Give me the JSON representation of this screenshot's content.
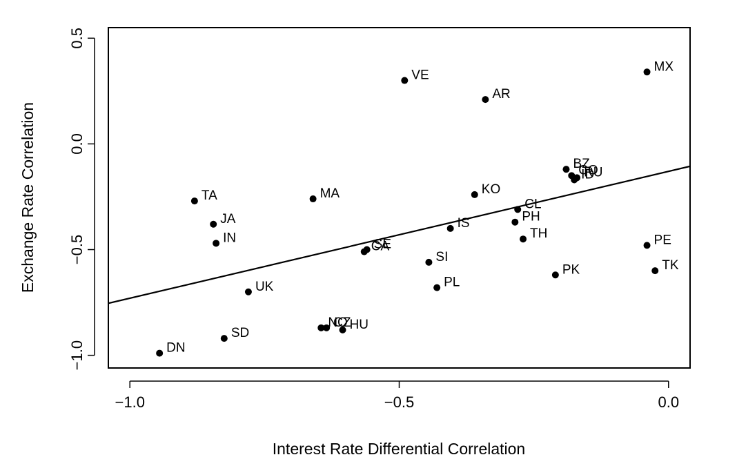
{
  "chart_data": {
    "type": "scatter",
    "xlabel": "Interest Rate Differential Correlation",
    "ylabel": "Exchange Rate Correlation",
    "xlim": [
      -1.04,
      0.04
    ],
    "ylim": [
      -1.06,
      0.55
    ],
    "x_ticks": [
      {
        "value": -1.0,
        "label": "−1.0"
      },
      {
        "value": -0.5,
        "label": "−0.5"
      },
      {
        "value": 0.0,
        "label": "0.0"
      }
    ],
    "y_ticks": [
      {
        "value": -1.0,
        "label": "−1.0"
      },
      {
        "value": -0.5,
        "label": "−0.5"
      },
      {
        "value": 0.0,
        "label": "0.0"
      },
      {
        "value": 0.5,
        "label": "0.5"
      }
    ],
    "grid": false,
    "legend": "none",
    "points": [
      {
        "label": "MX",
        "x": -0.04,
        "y": 0.34
      },
      {
        "label": "VE",
        "x": -0.49,
        "y": 0.3
      },
      {
        "label": "AR",
        "x": -0.34,
        "y": 0.21
      },
      {
        "label": "BZ",
        "x": -0.19,
        "y": -0.12
      },
      {
        "label": "CO",
        "x": -0.18,
        "y": -0.15
      },
      {
        "label": "RU",
        "x": -0.17,
        "y": -0.16
      },
      {
        "label": "ID",
        "x": -0.175,
        "y": -0.17
      },
      {
        "label": "KO",
        "x": -0.36,
        "y": -0.24
      },
      {
        "label": "TA",
        "x": -0.88,
        "y": -0.27
      },
      {
        "label": "MA",
        "x": -0.66,
        "y": -0.26
      },
      {
        "label": "CL",
        "x": -0.28,
        "y": -0.31
      },
      {
        "label": "PH",
        "x": -0.285,
        "y": -0.37
      },
      {
        "label": "JA",
        "x": -0.845,
        "y": -0.38
      },
      {
        "label": "IS",
        "x": -0.405,
        "y": -0.4
      },
      {
        "label": "TH",
        "x": -0.27,
        "y": -0.45
      },
      {
        "label": "IN",
        "x": -0.84,
        "y": -0.47
      },
      {
        "label": "PE",
        "x": -0.04,
        "y": -0.48
      },
      {
        "label": "SE",
        "x": -0.56,
        "y": -0.5
      },
      {
        "label": "CA",
        "x": -0.565,
        "y": -0.51
      },
      {
        "label": "SI",
        "x": -0.445,
        "y": -0.56
      },
      {
        "label": "TK",
        "x": -0.025,
        "y": -0.6
      },
      {
        "label": "PK",
        "x": -0.21,
        "y": -0.62
      },
      {
        "label": "PL",
        "x": -0.43,
        "y": -0.68
      },
      {
        "label": "UK",
        "x": -0.78,
        "y": -0.7
      },
      {
        "label": "NO",
        "x": -0.645,
        "y": -0.87
      },
      {
        "label": "CZ",
        "x": -0.635,
        "y": -0.87
      },
      {
        "label": "HU",
        "x": -0.605,
        "y": -0.88
      },
      {
        "label": "SD",
        "x": -0.825,
        "y": -0.92
      },
      {
        "label": "DN",
        "x": -0.945,
        "y": -0.99
      }
    ],
    "fit_line": {
      "intercept": -0.13,
      "slope": 0.6
    }
  }
}
